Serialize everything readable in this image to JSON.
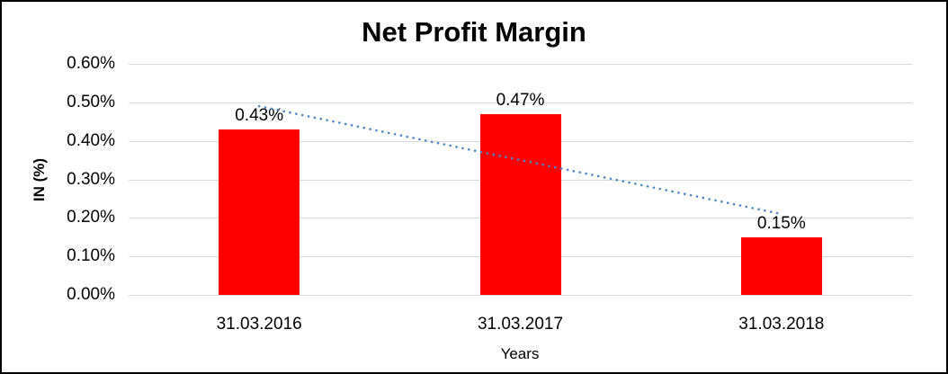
{
  "chart_data": {
    "type": "bar",
    "title": "Net Profit Margin",
    "xlabel": "Years",
    "ylabel": "IN (%)",
    "categories": [
      "31.03.2016",
      "31.03.2017",
      "31.03.2018"
    ],
    "values": [
      0.43,
      0.47,
      0.15
    ],
    "data_labels": [
      "0.43%",
      "0.47%",
      "0.15%"
    ],
    "ylim": [
      0,
      0.6
    ],
    "ytick_labels": [
      "0.00%",
      "0.10%",
      "0.20%",
      "0.30%",
      "0.40%",
      "0.50%",
      "0.60%"
    ],
    "grid": true,
    "legend_shown": false,
    "bar_color": "#ff0000",
    "gridline_color": "#d9d9d9",
    "text_color": "#000000",
    "trendline": {
      "type": "linear",
      "style": "dotted",
      "color": "#4a86c8",
      "start_value": 0.49,
      "end_value": 0.21
    }
  }
}
